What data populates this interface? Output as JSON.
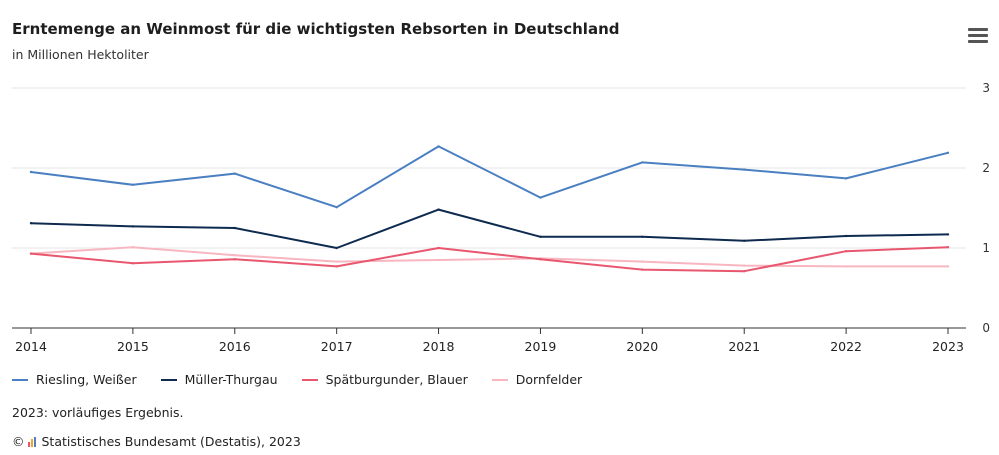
{
  "header": {
    "title": "Erntemenge an Weinmost für die wichtigsten Rebsorten in Deutschland",
    "subtitle": "in Millionen Hektoliter"
  },
  "footer": {
    "note": "2023: vorläufiges Ergebnis.",
    "copyright_symbol": "©",
    "source": "Statistisches Bundesamt (Destatis), 2023"
  },
  "icons": {
    "menu": "hamburger-menu-icon",
    "logo": "destatis-logo-icon"
  },
  "colors": {
    "riesling": "#4a7fc1",
    "mueller": "#0e2a4e",
    "spaetburgunder": "#e8576e",
    "dornfelder": "#f7b6c0",
    "grid": "#e6e6e6",
    "axis": "#333333"
  },
  "chart_data": {
    "type": "line",
    "title": "Erntemenge an Weinmost für die wichtigsten Rebsorten in Deutschland",
    "subtitle": "in Millionen Hektoliter",
    "x": [
      "2014",
      "2015",
      "2016",
      "2017",
      "2018",
      "2019",
      "2020",
      "2021",
      "2022",
      "2023"
    ],
    "yticks": [
      "0",
      "1",
      "2",
      "3"
    ],
    "ylim": [
      0,
      3
    ],
    "y_axis_side": "right",
    "grid": true,
    "legend_position": "bottom",
    "series": [
      {
        "name": "Riesling, Weißer",
        "color": "#4a7fc1",
        "values": [
          1.95,
          1.79,
          1.93,
          1.51,
          2.27,
          1.63,
          2.07,
          1.98,
          1.87,
          2.19
        ]
      },
      {
        "name": "Müller-Thurgau",
        "color": "#0e2a4e",
        "values": [
          1.31,
          1.27,
          1.25,
          1.0,
          1.48,
          1.14,
          1.14,
          1.09,
          1.15,
          1.17
        ]
      },
      {
        "name": "Spätburgunder, Blauer",
        "color": "#e8576e",
        "values": [
          0.93,
          0.81,
          0.86,
          0.77,
          1.0,
          0.86,
          0.73,
          0.71,
          0.96,
          1.01
        ]
      },
      {
        "name": "Dornfelder",
        "color": "#f7b6c0",
        "values": [
          0.93,
          1.01,
          0.91,
          0.83,
          0.85,
          0.87,
          0.83,
          0.78,
          0.77,
          0.77
        ]
      }
    ]
  }
}
